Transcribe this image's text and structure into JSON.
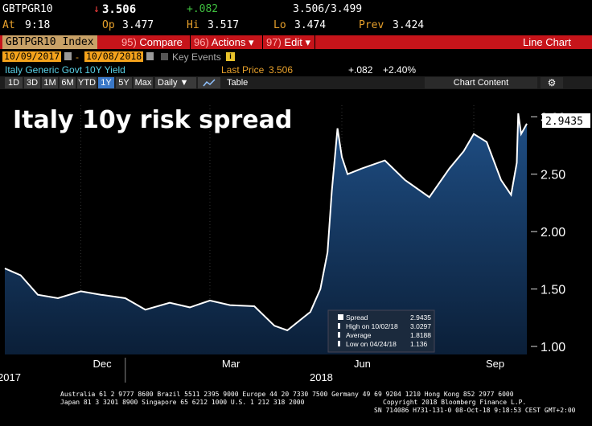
{
  "quote": {
    "ticker": "GBTPGR10",
    "down_arrow": "↓",
    "last": "3.506",
    "change": "+.082",
    "bid_ask": "3.506/3.499",
    "at_label": "At",
    "time": "9:18",
    "op_label": "Op",
    "open": "3.477",
    "hi_label": "Hi",
    "high": "3.517",
    "lo_label": "Lo",
    "low": "3.474",
    "prev_label": "Prev",
    "prev": "3.424"
  },
  "menu": {
    "ticker_box": "GBTPGR10 Index",
    "compare_num": "95)",
    "compare": "Compare",
    "actions_num": "96)",
    "actions": "Actions",
    "actions_caret": "▾",
    "edit_num": "97)",
    "edit": "Edit",
    "edit_caret": "▾",
    "view_title": "Line Chart"
  },
  "dates": {
    "start": "10/09/2017",
    "end": "10/08/2018",
    "separator": "-",
    "key_events": "Key Events"
  },
  "info": {
    "security_name": "Italy Generic Govt 10Y Yield",
    "last_price_label": "Last Price",
    "last_price": "3.506",
    "change": "+.082",
    "pct_change": "+2.40%"
  },
  "toolbar": {
    "periods": [
      "1D",
      "3D",
      "1M",
      "6M",
      "YTD",
      "1Y",
      "5Y",
      "Max"
    ],
    "active_period": "1Y",
    "frequency": "Daily ▼",
    "table": "Table",
    "chart_content": "Chart Content",
    "settings_icon": "gear-icon"
  },
  "chart_data": {
    "type": "area",
    "title": "Italy 10y risk spread",
    "last_value_tag": "2.9435",
    "y_ticks": [
      "1.00",
      "1.50",
      "2.00",
      "2.50",
      "3.00"
    ],
    "ylim": [
      0.93,
      3.1
    ],
    "x_month_labels": [
      "Dec",
      "Mar",
      "Jun",
      "Sep"
    ],
    "x_year_labels": [
      "2017",
      "2018"
    ],
    "series": [
      {
        "name": "Spread",
        "x": [
          "2017-10-09",
          "2017-10-20",
          "2017-11-01",
          "2017-11-15",
          "2017-12-01",
          "2017-12-15",
          "2018-01-01",
          "2018-01-15",
          "2018-02-01",
          "2018-02-15",
          "2018-03-01",
          "2018-03-15",
          "2018-04-01",
          "2018-04-15",
          "2018-04-24",
          "2018-05-01",
          "2018-05-10",
          "2018-05-17",
          "2018-05-22",
          "2018-05-25",
          "2018-05-29",
          "2018-06-01",
          "2018-06-05",
          "2018-06-15",
          "2018-07-01",
          "2018-07-15",
          "2018-08-01",
          "2018-08-15",
          "2018-08-25",
          "2018-09-01",
          "2018-09-10",
          "2018-09-20",
          "2018-09-27",
          "2018-10-01",
          "2018-10-02",
          "2018-10-04",
          "2018-10-08"
        ],
        "values": [
          1.68,
          1.62,
          1.45,
          1.42,
          1.48,
          1.45,
          1.42,
          1.32,
          1.38,
          1.34,
          1.4,
          1.36,
          1.35,
          1.18,
          1.14,
          1.21,
          1.3,
          1.5,
          1.82,
          2.35,
          2.9,
          2.65,
          2.5,
          2.55,
          2.62,
          2.45,
          2.3,
          2.55,
          2.7,
          2.85,
          2.78,
          2.45,
          2.32,
          2.6,
          3.03,
          2.85,
          2.94
        ]
      }
    ],
    "legend": {
      "items": [
        {
          "label": "Spread",
          "value": "2.9435"
        },
        {
          "label": "High on 10/02/18",
          "value": "3.0297"
        },
        {
          "label": "Average",
          "value": "1.8188"
        },
        {
          "label": "Low on 04/24/18",
          "value": "1.136"
        }
      ],
      "placement": "bottom-right"
    },
    "colors": {
      "line": "#ffffff",
      "fill_top": "#1f4f86",
      "fill_bottom": "#0b1f38"
    }
  },
  "footer": {
    "line1": "Australia 61 2 9777 8600 Brazil 5511 2395 9000 Europe 44 20 7330 7500 Germany 49 69 9204 1210 Hong Kong 852 2977 6000",
    "line2a": "Japan 81 3 3201 8900        Singapore 65 6212 1000     U.S. 1 212 318 2000",
    "line2b": "Copyright 2018 Bloomberg Finance L.P.",
    "line3": "SN 714086 H731-131-0 08-Oct-18  9:18:53 CEST GMT+2:00"
  }
}
